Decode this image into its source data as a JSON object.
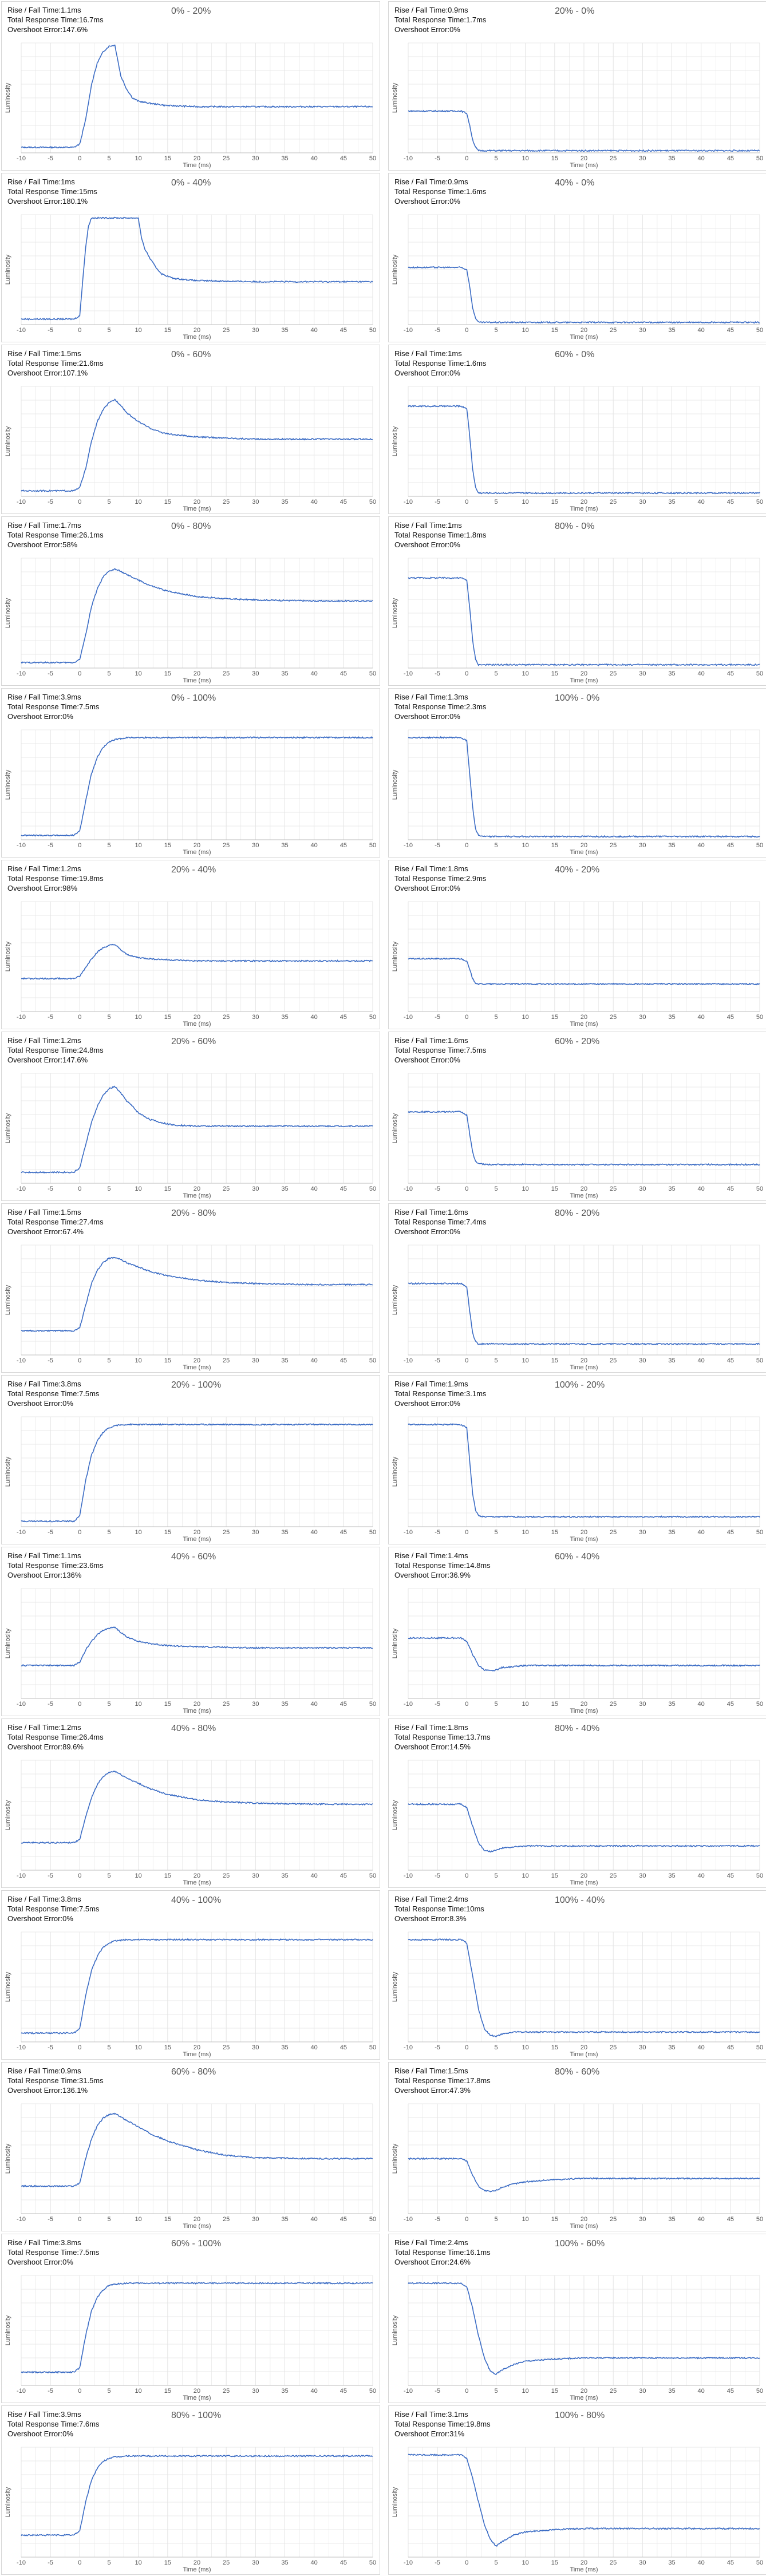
{
  "axis": {
    "xlabel": "Time (ms)",
    "ylabel": "Luminosity",
    "xticks": [
      "-10",
      "-5",
      "0",
      "5",
      "10",
      "15",
      "20",
      "25",
      "30",
      "35",
      "40",
      "45",
      "50"
    ]
  },
  "colors": {
    "line": "#3a6bc4",
    "grid": "#e3e3e3",
    "panel_border": "#d6d6d6"
  },
  "labels": {
    "rise": "Rise / Fall Time:",
    "total": "Total Response Time:",
    "overshoot": "Overshoot Error:"
  },
  "chart_data": [
    {
      "type": "line",
      "title": "0% - 20%",
      "rise": "1.1ms",
      "total": "16.7ms",
      "overshoot": "147.6%",
      "xlim": [
        -10,
        50
      ],
      "x": [
        -10,
        -1,
        0,
        1,
        2,
        3,
        4,
        5,
        6,
        7,
        8,
        9,
        10,
        12,
        15,
        20,
        30,
        40,
        50
      ],
      "y": [
        0.05,
        0.05,
        0.08,
        0.3,
        0.62,
        0.82,
        0.92,
        0.97,
        0.98,
        0.7,
        0.58,
        0.5,
        0.47,
        0.45,
        0.43,
        0.42,
        0.42,
        0.42,
        0.42
      ]
    },
    {
      "type": "line",
      "title": "20% - 0%",
      "rise": "0.9ms",
      "total": "1.7ms",
      "overshoot": "0%",
      "xlim": [
        -10,
        50
      ],
      "x": [
        -10,
        -1,
        0,
        0.5,
        1,
        1.5,
        2,
        3,
        5,
        50
      ],
      "y": [
        0.38,
        0.38,
        0.36,
        0.25,
        0.12,
        0.05,
        0.02,
        0.02,
        0.02,
        0.02
      ]
    },
    {
      "type": "line",
      "title": "0% - 40%",
      "rise": "1ms",
      "total": "15ms",
      "overshoot": "180.1%",
      "xlim": [
        -10,
        50
      ],
      "x": [
        -10,
        -1,
        0,
        0.5,
        1,
        1.5,
        2,
        2.5,
        10,
        10.5,
        11,
        12,
        13,
        14,
        16,
        20,
        30,
        40,
        50
      ],
      "y": [
        0.05,
        0.05,
        0.08,
        0.4,
        0.7,
        0.9,
        0.97,
        0.97,
        0.97,
        0.8,
        0.7,
        0.6,
        0.52,
        0.46,
        0.42,
        0.4,
        0.39,
        0.39,
        0.39
      ]
    },
    {
      "type": "line",
      "title": "40% - 0%",
      "rise": "0.9ms",
      "total": "1.6ms",
      "overshoot": "0%",
      "xlim": [
        -10,
        50
      ],
      "x": [
        -10,
        -1,
        0,
        0.5,
        1,
        1.5,
        2,
        3,
        5,
        50
      ],
      "y": [
        0.52,
        0.52,
        0.5,
        0.35,
        0.15,
        0.06,
        0.02,
        0.02,
        0.02,
        0.02
      ]
    },
    {
      "type": "line",
      "title": "0% - 60%",
      "rise": "1.5ms",
      "total": "21.6ms",
      "overshoot": "107.1%",
      "xlim": [
        -10,
        50
      ],
      "x": [
        -10,
        -1,
        0,
        1,
        2,
        3,
        4,
        5,
        6,
        7,
        8,
        9,
        10,
        12,
        14,
        16,
        20,
        25,
        30,
        40,
        50
      ],
      "y": [
        0.05,
        0.05,
        0.08,
        0.25,
        0.5,
        0.68,
        0.79,
        0.85,
        0.88,
        0.83,
        0.76,
        0.72,
        0.68,
        0.62,
        0.58,
        0.56,
        0.54,
        0.53,
        0.52,
        0.52,
        0.52
      ]
    },
    {
      "type": "line",
      "title": "60% - 0%",
      "rise": "1ms",
      "total": "1.6ms",
      "overshoot": "0%",
      "xlim": [
        -10,
        50
      ],
      "x": [
        -10,
        -1,
        0,
        0.5,
        1,
        1.5,
        2,
        3,
        5,
        50
      ],
      "y": [
        0.82,
        0.82,
        0.8,
        0.55,
        0.25,
        0.08,
        0.03,
        0.03,
        0.03,
        0.03
      ]
    },
    {
      "type": "line",
      "title": "0% - 80%",
      "rise": "1.7ms",
      "total": "26.1ms",
      "overshoot": "58%",
      "xlim": [
        -10,
        50
      ],
      "x": [
        -10,
        -1,
        0,
        1,
        2,
        3,
        4,
        5,
        6,
        7,
        8,
        10,
        12,
        15,
        20,
        25,
        30,
        40,
        50
      ],
      "y": [
        0.05,
        0.05,
        0.08,
        0.3,
        0.56,
        0.72,
        0.83,
        0.88,
        0.9,
        0.88,
        0.85,
        0.8,
        0.75,
        0.7,
        0.65,
        0.63,
        0.62,
        0.61,
        0.61
      ]
    },
    {
      "type": "line",
      "title": "80% - 0%",
      "rise": "1ms",
      "total": "1.8ms",
      "overshoot": "0%",
      "xlim": [
        -10,
        50
      ],
      "x": [
        -10,
        -1,
        0,
        0.5,
        1,
        1.5,
        2,
        3,
        5,
        50
      ],
      "y": [
        0.82,
        0.82,
        0.8,
        0.55,
        0.25,
        0.08,
        0.03,
        0.03,
        0.03,
        0.03
      ]
    },
    {
      "type": "line",
      "title": "0% - 100%",
      "rise": "3.9ms",
      "total": "7.5ms",
      "overshoot": "0%",
      "xlim": [
        -10,
        50
      ],
      "x": [
        -10,
        -1,
        0,
        1,
        2,
        3,
        4,
        5,
        6,
        8,
        10,
        15,
        20,
        50
      ],
      "y": [
        0.04,
        0.04,
        0.08,
        0.35,
        0.6,
        0.75,
        0.84,
        0.89,
        0.91,
        0.93,
        0.93,
        0.93,
        0.93,
        0.93
      ]
    },
    {
      "type": "line",
      "title": "100% - 0%",
      "rise": "1.3ms",
      "total": "2.3ms",
      "overshoot": "0%",
      "xlim": [
        -10,
        50
      ],
      "x": [
        -10,
        -1,
        0,
        0.5,
        1,
        1.5,
        2,
        3,
        5,
        50
      ],
      "y": [
        0.93,
        0.93,
        0.9,
        0.6,
        0.3,
        0.1,
        0.04,
        0.03,
        0.03,
        0.03
      ]
    },
    {
      "type": "line",
      "title": "20% - 40%",
      "rise": "1.2ms",
      "total": "19.8ms",
      "overshoot": "98%",
      "xlim": [
        -10,
        50
      ],
      "x": [
        -10,
        -1,
        0,
        1,
        2,
        3,
        4,
        5,
        6,
        7,
        8,
        10,
        12,
        15,
        20,
        30,
        50
      ],
      "y": [
        0.3,
        0.3,
        0.32,
        0.4,
        0.48,
        0.54,
        0.58,
        0.6,
        0.61,
        0.56,
        0.52,
        0.49,
        0.48,
        0.47,
        0.46,
        0.46,
        0.46
      ]
    },
    {
      "type": "line",
      "title": "40% - 20%",
      "rise": "1.8ms",
      "total": "2.9ms",
      "overshoot": "0%",
      "xlim": [
        -10,
        50
      ],
      "x": [
        -10,
        -1,
        0,
        0.5,
        1,
        1.5,
        2,
        3,
        5,
        50
      ],
      "y": [
        0.48,
        0.48,
        0.46,
        0.38,
        0.3,
        0.26,
        0.25,
        0.25,
        0.25,
        0.25
      ]
    },
    {
      "type": "line",
      "title": "20% - 60%",
      "rise": "1.2ms",
      "total": "24.8ms",
      "overshoot": "147.6%",
      "xlim": [
        -10,
        50
      ],
      "x": [
        -10,
        -1,
        0,
        1,
        2,
        3,
        4,
        5,
        6,
        7,
        8,
        9,
        10,
        12,
        14,
        16,
        20,
        30,
        50
      ],
      "y": [
        0.1,
        0.1,
        0.14,
        0.35,
        0.55,
        0.7,
        0.8,
        0.86,
        0.88,
        0.82,
        0.75,
        0.7,
        0.64,
        0.58,
        0.55,
        0.53,
        0.52,
        0.52,
        0.52
      ]
    },
    {
      "type": "line",
      "title": "60% - 20%",
      "rise": "1.6ms",
      "total": "7.5ms",
      "overshoot": "0%",
      "xlim": [
        -10,
        50
      ],
      "x": [
        -10,
        -1,
        0,
        0.5,
        1,
        1.5,
        2,
        3,
        5,
        50
      ],
      "y": [
        0.65,
        0.65,
        0.62,
        0.45,
        0.28,
        0.2,
        0.18,
        0.17,
        0.17,
        0.17
      ]
    },
    {
      "type": "line",
      "title": "20% - 80%",
      "rise": "1.5ms",
      "total": "27.4ms",
      "overshoot": "67.4%",
      "xlim": [
        -10,
        50
      ],
      "x": [
        -10,
        -1,
        0,
        1,
        2,
        3,
        4,
        5,
        6,
        7,
        8,
        10,
        12,
        15,
        20,
        25,
        30,
        40,
        50
      ],
      "y": [
        0.22,
        0.22,
        0.25,
        0.45,
        0.65,
        0.77,
        0.84,
        0.88,
        0.89,
        0.87,
        0.84,
        0.8,
        0.76,
        0.72,
        0.68,
        0.66,
        0.65,
        0.64,
        0.64
      ]
    },
    {
      "type": "line",
      "title": "80% - 20%",
      "rise": "1.6ms",
      "total": "7.4ms",
      "overshoot": "0%",
      "xlim": [
        -10,
        50
      ],
      "x": [
        -10,
        -1,
        0,
        0.5,
        1,
        1.5,
        2,
        3,
        5,
        50
      ],
      "y": [
        0.65,
        0.65,
        0.62,
        0.4,
        0.2,
        0.12,
        0.1,
        0.1,
        0.1,
        0.1
      ]
    },
    {
      "type": "line",
      "title": "20% - 100%",
      "rise": "3.8ms",
      "total": "7.5ms",
      "overshoot": "0%",
      "xlim": [
        -10,
        50
      ],
      "x": [
        -10,
        -1,
        0,
        1,
        2,
        3,
        4,
        5,
        6,
        8,
        10,
        15,
        50
      ],
      "y": [
        0.05,
        0.05,
        0.1,
        0.42,
        0.65,
        0.78,
        0.86,
        0.9,
        0.92,
        0.93,
        0.93,
        0.93,
        0.93
      ]
    },
    {
      "type": "line",
      "title": "100% - 20%",
      "rise": "1.9ms",
      "total": "3.1ms",
      "overshoot": "0%",
      "xlim": [
        -10,
        50
      ],
      "x": [
        -10,
        -1,
        0,
        0.5,
        1,
        1.5,
        2,
        3,
        5,
        50
      ],
      "y": [
        0.93,
        0.93,
        0.9,
        0.6,
        0.3,
        0.15,
        0.1,
        0.09,
        0.09,
        0.09
      ]
    },
    {
      "type": "line",
      "title": "40% - 60%",
      "rise": "1.1ms",
      "total": "23.6ms",
      "overshoot": "136%",
      "xlim": [
        -10,
        50
      ],
      "x": [
        -10,
        -1,
        0,
        1,
        2,
        3,
        4,
        5,
        6,
        7,
        8,
        10,
        12,
        15,
        20,
        30,
        50
      ],
      "y": [
        0.3,
        0.3,
        0.33,
        0.44,
        0.52,
        0.58,
        0.62,
        0.64,
        0.65,
        0.6,
        0.56,
        0.52,
        0.5,
        0.48,
        0.47,
        0.46,
        0.46
      ]
    },
    {
      "type": "line",
      "title": "60% - 40%",
      "rise": "1.4ms",
      "total": "14.8ms",
      "overshoot": "36.9%",
      "xlim": [
        -10,
        50
      ],
      "x": [
        -10,
        -1,
        0,
        1,
        2,
        3,
        4,
        5,
        6,
        8,
        10,
        15,
        20,
        50
      ],
      "y": [
        0.55,
        0.55,
        0.52,
        0.4,
        0.3,
        0.26,
        0.25,
        0.26,
        0.28,
        0.29,
        0.3,
        0.3,
        0.3,
        0.3
      ]
    },
    {
      "type": "line",
      "title": "40% - 80%",
      "rise": "1.2ms",
      "total": "26.4ms",
      "overshoot": "89.6%",
      "xlim": [
        -10,
        50
      ],
      "x": [
        -10,
        -1,
        0,
        1,
        2,
        3,
        4,
        5,
        6,
        7,
        8,
        10,
        12,
        15,
        20,
        25,
        30,
        40,
        50
      ],
      "y": [
        0.25,
        0.25,
        0.28,
        0.48,
        0.66,
        0.78,
        0.85,
        0.89,
        0.9,
        0.87,
        0.84,
        0.79,
        0.74,
        0.69,
        0.64,
        0.62,
        0.61,
        0.6,
        0.6
      ]
    },
    {
      "type": "line",
      "title": "80% - 40%",
      "rise": "1.8ms",
      "total": "13.7ms",
      "overshoot": "14.5%",
      "xlim": [
        -10,
        50
      ],
      "x": [
        -10,
        -1,
        0,
        1,
        2,
        3,
        4,
        5,
        6,
        8,
        10,
        15,
        20,
        50
      ],
      "y": [
        0.6,
        0.6,
        0.57,
        0.4,
        0.25,
        0.18,
        0.17,
        0.18,
        0.2,
        0.21,
        0.22,
        0.22,
        0.22,
        0.22
      ]
    },
    {
      "type": "line",
      "title": "40% - 100%",
      "rise": "3.8ms",
      "total": "7.5ms",
      "overshoot": "0%",
      "xlim": [
        -10,
        50
      ],
      "x": [
        -10,
        -1,
        0,
        1,
        2,
        3,
        4,
        5,
        6,
        8,
        10,
        15,
        50
      ],
      "y": [
        0.08,
        0.08,
        0.12,
        0.42,
        0.65,
        0.78,
        0.86,
        0.9,
        0.92,
        0.93,
        0.93,
        0.93,
        0.93
      ]
    },
    {
      "type": "line",
      "title": "100% - 40%",
      "rise": "2.4ms",
      "total": "10ms",
      "overshoot": "8.3%",
      "xlim": [
        -10,
        50
      ],
      "x": [
        -10,
        -1,
        0,
        1,
        2,
        3,
        4,
        5,
        6,
        8,
        10,
        15,
        50
      ],
      "y": [
        0.93,
        0.93,
        0.9,
        0.6,
        0.3,
        0.12,
        0.06,
        0.05,
        0.07,
        0.09,
        0.09,
        0.09,
        0.09
      ]
    },
    {
      "type": "line",
      "title": "60% - 80%",
      "rise": "0.9ms",
      "total": "31.5ms",
      "overshoot": "136.1%",
      "xlim": [
        -10,
        50
      ],
      "x": [
        -10,
        -1,
        0,
        1,
        2,
        3,
        4,
        5,
        6,
        7,
        8,
        10,
        12,
        15,
        20,
        25,
        30,
        40,
        50
      ],
      "y": [
        0.25,
        0.25,
        0.28,
        0.5,
        0.68,
        0.8,
        0.87,
        0.9,
        0.91,
        0.88,
        0.85,
        0.79,
        0.73,
        0.66,
        0.58,
        0.53,
        0.51,
        0.5,
        0.5
      ]
    },
    {
      "type": "line",
      "title": "80% - 60%",
      "rise": "1.5ms",
      "total": "17.8ms",
      "overshoot": "47.3%",
      "xlim": [
        -10,
        50
      ],
      "x": [
        -10,
        -1,
        0,
        1,
        2,
        3,
        4,
        5,
        6,
        8,
        10,
        15,
        20,
        30,
        50
      ],
      "y": [
        0.5,
        0.5,
        0.48,
        0.35,
        0.25,
        0.21,
        0.2,
        0.21,
        0.24,
        0.27,
        0.29,
        0.31,
        0.32,
        0.32,
        0.32
      ]
    },
    {
      "type": "line",
      "title": "60% - 100%",
      "rise": "3.8ms",
      "total": "7.5ms",
      "overshoot": "0%",
      "xlim": [
        -10,
        50
      ],
      "x": [
        -10,
        -1,
        0,
        1,
        2,
        3,
        4,
        5,
        6,
        8,
        10,
        15,
        50
      ],
      "y": [
        0.12,
        0.12,
        0.16,
        0.45,
        0.68,
        0.8,
        0.87,
        0.91,
        0.92,
        0.93,
        0.93,
        0.93,
        0.93
      ]
    },
    {
      "type": "line",
      "title": "100% - 60%",
      "rise": "2.4ms",
      "total": "16.1ms",
      "overshoot": "24.6%",
      "xlim": [
        -10,
        50
      ],
      "x": [
        -10,
        -1,
        0,
        1,
        2,
        3,
        4,
        5,
        6,
        8,
        10,
        15,
        20,
        50
      ],
      "y": [
        0.93,
        0.93,
        0.9,
        0.7,
        0.45,
        0.25,
        0.13,
        0.1,
        0.14,
        0.19,
        0.22,
        0.24,
        0.25,
        0.25
      ]
    },
    {
      "type": "line",
      "title": "80% - 100%",
      "rise": "3.9ms",
      "total": "7.6ms",
      "overshoot": "0%",
      "xlim": [
        -10,
        50
      ],
      "x": [
        -10,
        -1,
        0,
        1,
        2,
        3,
        4,
        5,
        6,
        8,
        10,
        15,
        50
      ],
      "y": [
        0.2,
        0.2,
        0.24,
        0.5,
        0.7,
        0.81,
        0.87,
        0.9,
        0.91,
        0.92,
        0.92,
        0.92,
        0.92
      ]
    },
    {
      "type": "line",
      "title": "100% - 80%",
      "rise": "3.1ms",
      "total": "19.8ms",
      "overshoot": "31%",
      "xlim": [
        -10,
        50
      ],
      "x": [
        -10,
        -1,
        0,
        1,
        2,
        3,
        4,
        5,
        6,
        8,
        10,
        15,
        20,
        30,
        50
      ],
      "y": [
        0.93,
        0.93,
        0.9,
        0.72,
        0.5,
        0.3,
        0.16,
        0.1,
        0.14,
        0.2,
        0.23,
        0.25,
        0.26,
        0.26,
        0.26
      ]
    }
  ]
}
